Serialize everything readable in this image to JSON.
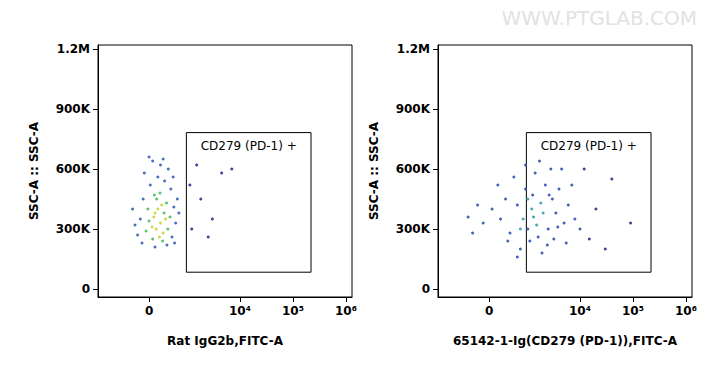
{
  "watermark": "WWW.PTGLAB.COM",
  "chart_data": [
    {
      "type": "scatter",
      "log": "x",
      "grid": false,
      "x_label": "Rat IgG2b,FITC-A",
      "y_label": "SSC-A :: SSC-A",
      "xlim": [
        -1750,
        1300000
      ],
      "ylim": [
        -40000,
        1220000
      ],
      "xticks": [
        0,
        {
          "value": 10000,
          "label": "10⁴"
        },
        {
          "value": 100000,
          "label": "10⁵"
        },
        {
          "value": 1000000,
          "label": "10⁶"
        }
      ],
      "yticks": [
        0,
        {
          "value": 300000,
          "label": "300K"
        },
        {
          "value": 600000,
          "label": "600K"
        },
        {
          "value": 900000,
          "label": "900K"
        },
        {
          "value": 1200000,
          "label": "1.2M"
        }
      ],
      "gate": {
        "label": "CD279 (PD-1) +",
        "x": [
          935,
          219000
        ],
        "y": [
          84000,
          782000
        ]
      },
      "x": [
        120,
        200,
        80,
        250,
        150,
        300,
        50,
        180,
        220,
        100,
        -50,
        350,
        0,
        270,
        130,
        60,
        320,
        -20,
        400,
        190,
        240,
        90,
        -200,
        -150,
        450,
        500,
        -100,
        420,
        20,
        280,
        150,
        360,
        -80,
        200,
        60,
        -250,
        550,
        600,
        480,
        -120,
        330,
        100,
        650,
        -300,
        520,
        0,
        250,
        1200,
        1800,
        2500,
        4500,
        7000,
        1500,
        3000,
        1100
      ],
      "y": [
        300000,
        330000,
        360000,
        280000,
        400000,
        350000,
        310000,
        260000,
        420000,
        380000,
        290000,
        300000,
        340000,
        380000,
        450000,
        250000,
        430000,
        400000,
        360000,
        480000,
        240000,
        470000,
        270000,
        350000,
        260000,
        410000,
        450000,
        500000,
        520000,
        540000,
        560000,
        600000,
        580000,
        620000,
        640000,
        320000,
        330000,
        450000,
        560000,
        230000,
        220000,
        210000,
        380000,
        400000,
        230000,
        660000,
        650000,
        300000,
        450000,
        260000,
        580000,
        600000,
        620000,
        350000,
        520000
      ],
      "colors": [
        "#c6d63a",
        "#c6d63a",
        "#c6d63a",
        "#c6d63a",
        "#c6d63a",
        "#c6d63a",
        "#c6d63a",
        "#c6d63a",
        "#c6d63a",
        "#c6d63a",
        "#4dbb5f",
        "#4dbb5f",
        "#4dbb5f",
        "#4dbb5f",
        "#4dbb5f",
        "#4dbb5f",
        "#4dbb5f",
        "#4dbb5f",
        "#4dbb5f",
        "#4dbb5f",
        "#4dbb5f",
        "#4dbb5f",
        "#3a5fb8",
        "#3a5fb8",
        "#3a5fb8",
        "#3a5fb8",
        "#3a5fb8",
        "#3a5fb8",
        "#3a5fb8",
        "#3a5fb8",
        "#3a5fb8",
        "#3a5fb8",
        "#3a5fb8",
        "#3a5fb8",
        "#3a5fb8",
        "#3a5fb8",
        "#3a5fb8",
        "#3a5fb8",
        "#3a5fb8",
        "#3a5fb8",
        "#3a5fb8",
        "#3a5fb8",
        "#3a5fb8",
        "#3a5fb8",
        "#3a5fb8",
        "#3a5fb8",
        "#3a5fb8",
        "#2a2f8f",
        "#2a2f8f",
        "#2a2f8f",
        "#2a2f8f",
        "#2a2f8f",
        "#2a2f8f",
        "#2a2f8f",
        "#2a2f8f"
      ]
    },
    {
      "type": "scatter",
      "log": "x",
      "grid": false,
      "x_label": "65142-1-Ig(CD279 (PD-1)),FITC-A",
      "y_label": "SSC-A :: SSC-A",
      "xlim": [
        -1750,
        1300000
      ],
      "ylim": [
        -40000,
        1220000
      ],
      "xticks": [
        0,
        {
          "value": 10000,
          "label": "10⁴"
        },
        {
          "value": 100000,
          "label": "10⁵"
        },
        {
          "value": 1000000,
          "label": "10⁶"
        }
      ],
      "yticks": [
        0,
        {
          "value": 300000,
          "label": "300K"
        },
        {
          "value": 600000,
          "label": "600K"
        },
        {
          "value": 900000,
          "label": "900K"
        },
        {
          "value": 1200000,
          "label": "1.2M"
        }
      ],
      "gate": {
        "label": "CD279 (PD-1) +",
        "x": [
          935,
          219000
        ],
        "y": [
          84000,
          782000
        ]
      },
      "x": [
        800,
        1200,
        1500,
        1000,
        2000,
        700,
        1800,
        1300,
        400,
        600,
        2500,
        3000,
        900,
        1600,
        200,
        2200,
        3500,
        500,
        1100,
        2800,
        -100,
        4000,
        1400,
        700,
        5000,
        300,
        2400,
        6000,
        1700,
        -300,
        150,
        3200,
        8000,
        -200,
        2600,
        900,
        4500,
        1900,
        600,
        -400,
        10000,
        7000,
        350,
        1000,
        3800,
        1250,
        50,
        5500,
        20000,
        40000,
        15000,
        90000,
        12000,
        30000
      ],
      "y": [
        350000,
        400000,
        320000,
        450000,
        380000,
        300000,
        430000,
        360000,
        280000,
        420000,
        300000,
        450000,
        500000,
        260000,
        350000,
        520000,
        380000,
        560000,
        240000,
        600000,
        330000,
        500000,
        580000,
        200000,
        330000,
        450000,
        220000,
        420000,
        640000,
        280000,
        520000,
        250000,
        350000,
        420000,
        470000,
        620000,
        600000,
        180000,
        160000,
        360000,
        300000,
        520000,
        240000,
        300000,
        310000,
        470000,
        400000,
        230000,
        400000,
        550000,
        250000,
        330000,
        600000,
        200000
      ],
      "colors": [
        "#36a0b0",
        "#36a0b0",
        "#36a0b0",
        "#36a0b0",
        "#36a0b0",
        "#36a0b0",
        "#36a0b0",
        "#36a0b0",
        "#3550b0",
        "#3550b0",
        "#3550b0",
        "#3550b0",
        "#3550b0",
        "#3550b0",
        "#3550b0",
        "#3550b0",
        "#3550b0",
        "#3550b0",
        "#3550b0",
        "#3550b0",
        "#3550b0",
        "#3550b0",
        "#3550b0",
        "#3550b0",
        "#3550b0",
        "#3550b0",
        "#3550b0",
        "#3550b0",
        "#3550b0",
        "#3550b0",
        "#3550b0",
        "#3550b0",
        "#3550b0",
        "#3550b0",
        "#3550b0",
        "#3550b0",
        "#3550b0",
        "#3550b0",
        "#3550b0",
        "#3550b0",
        "#3550b0",
        "#3550b0",
        "#3550b0",
        "#3550b0",
        "#3550b0",
        "#3550b0",
        "#3550b0",
        "#3550b0",
        "#2a2f8f",
        "#2a2f8f",
        "#2a2f8f",
        "#2a2f8f",
        "#2a2f8f",
        "#2a2f8f"
      ]
    }
  ]
}
